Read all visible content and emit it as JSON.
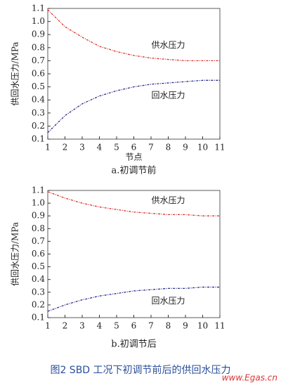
{
  "chart_data": [
    {
      "type": "line",
      "caption": "a.初调节前",
      "x_label": "节点",
      "y_label": "供回水压力/MPa",
      "x": [
        1,
        2,
        3,
        4,
        5,
        6,
        7,
        8,
        9,
        10,
        11
      ],
      "xlim": [
        1,
        11
      ],
      "xticks": [
        1,
        2,
        3,
        4,
        5,
        6,
        7,
        8,
        9,
        10,
        11
      ],
      "ylim": [
        0.1,
        1.1
      ],
      "yticks": [
        0.1,
        0.2,
        0.3,
        0.4,
        0.5,
        0.6,
        0.7,
        0.8,
        0.9,
        {
          "value": 1,
          "label": "1.0"
        },
        1.1
      ],
      "series": [
        {
          "name": "供水压力",
          "color": "#d9302a",
          "values": [
            1.09,
            0.96,
            0.88,
            0.81,
            0.77,
            0.74,
            0.72,
            0.71,
            0.7,
            0.7,
            0.7
          ]
        },
        {
          "name": "回水压力",
          "color": "#2a2a8a",
          "values": [
            0.15,
            0.28,
            0.37,
            0.43,
            0.47,
            0.5,
            0.52,
            0.53,
            0.54,
            0.55,
            0.55
          ]
        }
      ]
    },
    {
      "type": "line",
      "caption": "b.初调节后",
      "y_label": "供回水压力/MPa",
      "x": [
        1,
        2,
        3,
        4,
        5,
        6,
        7,
        8,
        9,
        10,
        11
      ],
      "xlim": [
        1,
        11
      ],
      "xticks": [
        1,
        2,
        3,
        4,
        5,
        6,
        7,
        8,
        9,
        10,
        11
      ],
      "ylim": [
        0.1,
        1.1
      ],
      "yticks": [
        0.1,
        0.2,
        0.3,
        0.4,
        0.5,
        0.6,
        0.7,
        0.8,
        0.9,
        {
          "value": 1,
          "label": "1.0"
        },
        1.1
      ],
      "series": [
        {
          "name": "供水压力",
          "color": "#d9302a",
          "values": [
            1.09,
            1.04,
            1.0,
            0.97,
            0.95,
            0.93,
            0.92,
            0.91,
            0.91,
            0.9,
            0.9
          ]
        },
        {
          "name": "回水压力",
          "color": "#2a2a8a",
          "values": [
            0.15,
            0.2,
            0.24,
            0.27,
            0.29,
            0.31,
            0.32,
            0.33,
            0.33,
            0.34,
            0.34
          ]
        }
      ]
    }
  ],
  "figure_caption": "图2  SBD 工况下初调节前后的供回水压力",
  "watermark": "www.Egas.cn"
}
